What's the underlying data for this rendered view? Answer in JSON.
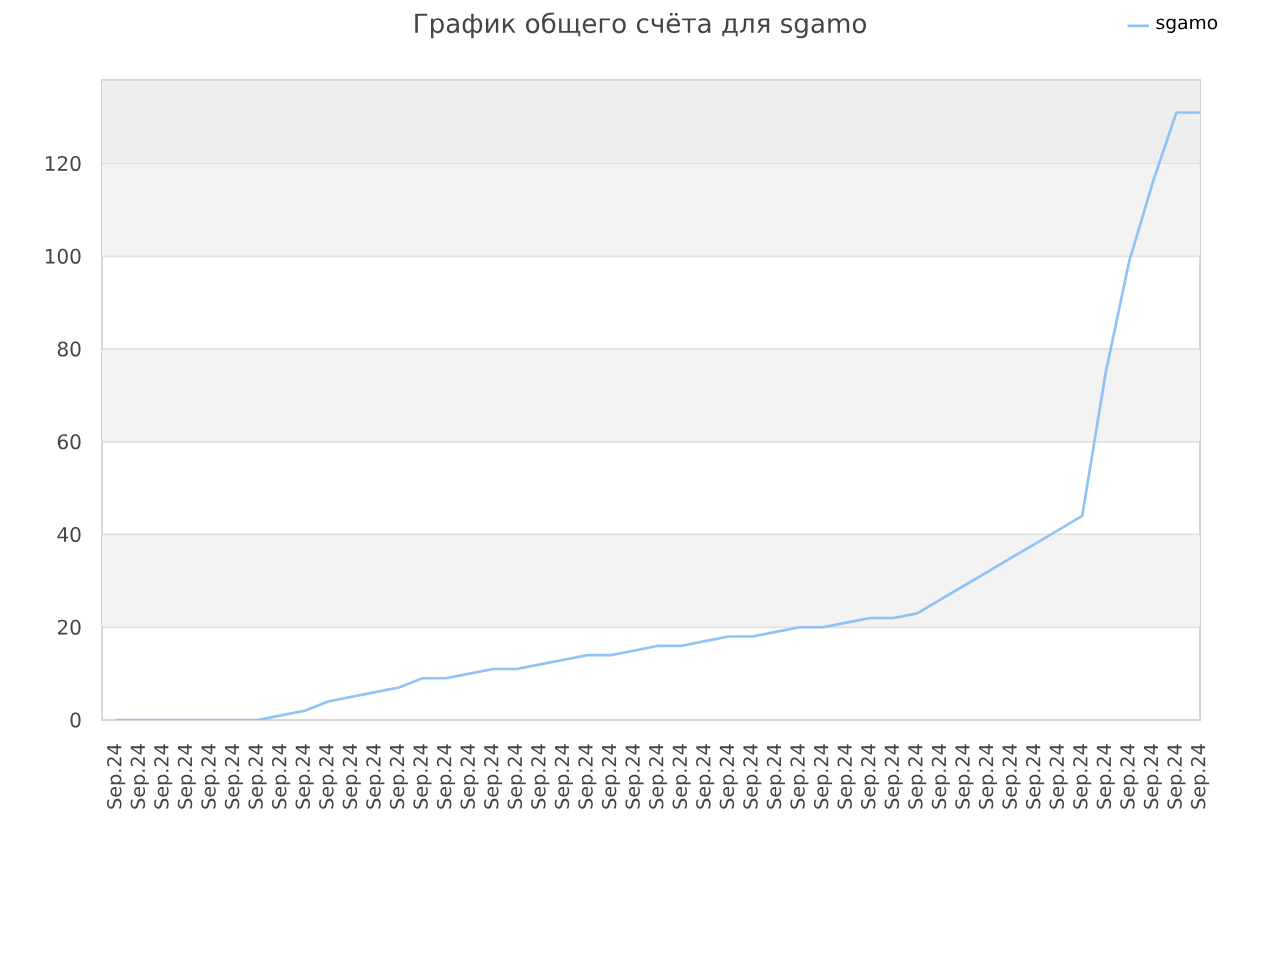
{
  "chart_data": {
    "type": "line",
    "title": "График общего счёта для sgamo",
    "categories": [
      "Sep.24",
      "Sep.24",
      "Sep.24",
      "Sep.24",
      "Sep.24",
      "Sep.24",
      "Sep.24",
      "Sep.24",
      "Sep.24",
      "Sep.24",
      "Sep.24",
      "Sep.24",
      "Sep.24",
      "Sep.24",
      "Sep.24",
      "Sep.24",
      "Sep.24",
      "Sep.24",
      "Sep.24",
      "Sep.24",
      "Sep.24",
      "Sep.24",
      "Sep.24",
      "Sep.24",
      "Sep.24",
      "Sep.24",
      "Sep.24",
      "Sep.24",
      "Sep.24",
      "Sep.24",
      "Sep.24",
      "Sep.24",
      "Sep.24",
      "Sep.24",
      "Sep.24",
      "Sep.24",
      "Sep.24",
      "Sep.24",
      "Sep.24",
      "Sep.24",
      "Sep.24",
      "Sep.24",
      "Sep.24",
      "Sep.24",
      "Sep.24",
      "Sep.24",
      "Sep.24"
    ],
    "series": [
      {
        "name": "sgamo",
        "color": "#90c2f3",
        "values": [
          0,
          0,
          0,
          0,
          0,
          0,
          0,
          1,
          2,
          4,
          5,
          6,
          7,
          9,
          9,
          10,
          11,
          11,
          12,
          13,
          14,
          14,
          15,
          16,
          16,
          17,
          18,
          18,
          19,
          20,
          20,
          21,
          22,
          22,
          23,
          26,
          29,
          32,
          35,
          38,
          41,
          44,
          75,
          99,
          116,
          131,
          131
        ]
      }
    ],
    "ylim": [
      0,
      138
    ],
    "yticks": [
      0,
      20,
      40,
      60,
      80,
      100,
      120
    ],
    "grid": "y",
    "legend": "top right",
    "bands": [
      {
        "axis": "y",
        "from": 20,
        "to": 40,
        "color": "#f3f3f3"
      },
      {
        "axis": "y",
        "from": 60,
        "to": 80,
        "color": "#f3f3f3"
      },
      {
        "axis": "y",
        "from": 100,
        "to": 120,
        "color": "#f3f3f3"
      },
      {
        "axis": "y",
        "from": 120,
        "to": 138,
        "color": "#eeeeee"
      }
    ]
  }
}
